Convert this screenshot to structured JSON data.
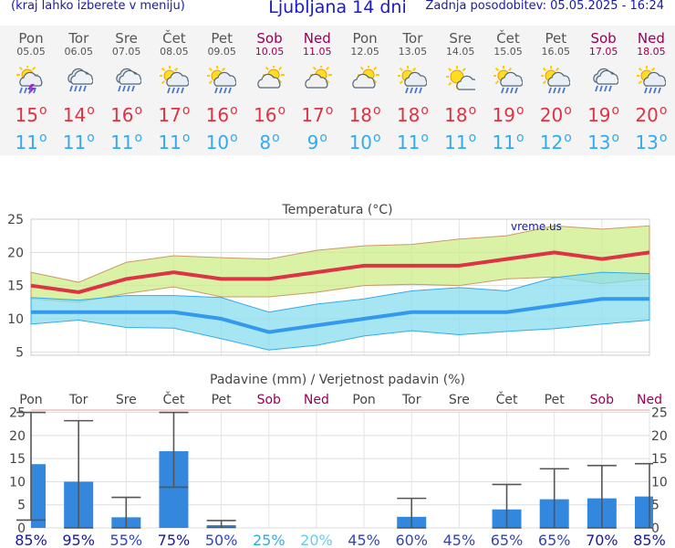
{
  "header": {
    "left_link": "(kraj lahko izberete v meniju)",
    "title": "Ljubljana 14 dni",
    "updated": "Zadnja posodobitev: 05.05.2025 - 16:24"
  },
  "days": [
    {
      "name": "Pon",
      "date": "05.05",
      "weekend": false,
      "icon": "thunderstorm-sun-icon",
      "tmax": "15",
      "tmin": "11"
    },
    {
      "name": "Tor",
      "date": "06.05",
      "weekend": false,
      "icon": "cloud-rain-icon",
      "tmax": "14",
      "tmin": "11"
    },
    {
      "name": "Sre",
      "date": "07.05",
      "weekend": false,
      "icon": "cloud-rain-icon",
      "tmax": "16",
      "tmin": "11"
    },
    {
      "name": "Čet",
      "date": "08.05",
      "weekend": false,
      "icon": "sun-cloud-rain-icon",
      "tmax": "17",
      "tmin": "11"
    },
    {
      "name": "Pet",
      "date": "09.05",
      "weekend": false,
      "icon": "sun-cloud-rain-icon",
      "tmax": "16",
      "tmin": "10"
    },
    {
      "name": "Sob",
      "date": "10.05",
      "weekend": true,
      "icon": "sun-cloud-icon",
      "tmax": "16",
      "tmin": "8"
    },
    {
      "name": "Ned",
      "date": "11.05",
      "weekend": true,
      "icon": "sun-cloud-icon",
      "tmax": "17",
      "tmin": "9"
    },
    {
      "name": "Pon",
      "date": "12.05",
      "weekend": false,
      "icon": "sun-cloud-icon",
      "tmax": "18",
      "tmin": "10"
    },
    {
      "name": "Tor",
      "date": "13.05",
      "weekend": false,
      "icon": "sun-cloud-rain-icon",
      "tmax": "18",
      "tmin": "11"
    },
    {
      "name": "Sre",
      "date": "14.05",
      "weekend": false,
      "icon": "sun-small-cloud-icon",
      "tmax": "18",
      "tmin": "11"
    },
    {
      "name": "Čet",
      "date": "15.05",
      "weekend": false,
      "icon": "sun-cloud-rain-icon",
      "tmax": "19",
      "tmin": "11"
    },
    {
      "name": "Pet",
      "date": "16.05",
      "weekend": false,
      "icon": "sun-cloud-rain-icon",
      "tmax": "20",
      "tmin": "12"
    },
    {
      "name": "Sob",
      "date": "17.05",
      "weekend": true,
      "icon": "cloud-rain-icon",
      "tmax": "19",
      "tmin": "13"
    },
    {
      "name": "Ned",
      "date": "18.05",
      "weekend": true,
      "icon": "sun-cloud-rain-icon",
      "tmax": "20",
      "tmin": "13"
    }
  ],
  "chart_data": [
    {
      "type": "line",
      "title": "Temperatura (°C)",
      "watermark": "vreme.us",
      "ylim": [
        4.5,
        25
      ],
      "yticks": [
        5,
        10,
        15,
        20,
        25
      ],
      "grid": true,
      "x": [
        "05.05",
        "06.05",
        "07.05",
        "08.05",
        "09.05",
        "10.05",
        "11.05",
        "12.05",
        "13.05",
        "14.05",
        "15.05",
        "16.05",
        "17.05",
        "18.05"
      ],
      "series": [
        {
          "role": "max_median",
          "values": [
            15,
            14,
            16,
            17,
            16,
            16,
            17,
            18,
            18,
            18,
            19,
            20,
            19,
            20
          ],
          "color": "#dd3344"
        },
        {
          "role": "max_band_high",
          "values": [
            17,
            15.5,
            18.5,
            19.5,
            19.2,
            19,
            20.3,
            21,
            21.2,
            22,
            22.5,
            24,
            23.5,
            24
          ],
          "color": "#ccee88"
        },
        {
          "role": "max_band_low",
          "values": [
            13,
            12.5,
            13.8,
            14.8,
            13.3,
            13.3,
            14,
            15,
            15.2,
            15,
            16,
            16.3,
            15.3,
            16
          ],
          "color": "#ccee88"
        },
        {
          "role": "min_median",
          "values": [
            11,
            11,
            11,
            11,
            10,
            8,
            9,
            10,
            11,
            11,
            11,
            12,
            13,
            13
          ],
          "color": "#3399ee"
        },
        {
          "role": "min_band_high",
          "values": [
            13.2,
            12.8,
            13.5,
            13.5,
            13.2,
            11,
            12.2,
            13,
            14.2,
            14.7,
            14.2,
            16.2,
            17,
            16.8
          ],
          "color": "#99ddee"
        },
        {
          "role": "min_band_low",
          "values": [
            9.2,
            9.8,
            8.7,
            8.6,
            7,
            5.3,
            6,
            7.4,
            8.2,
            7.6,
            8.1,
            8.5,
            9.2,
            9.8
          ],
          "color": "#99ddee"
        }
      ]
    },
    {
      "type": "bar",
      "title": "Padavine (mm) / Verjetnost padavin (%)",
      "ylim": [
        0,
        25.5
      ],
      "yticks": [
        0,
        5,
        10,
        15,
        20,
        25
      ],
      "categories": [
        "Pon",
        "Tor",
        "Sre",
        "Čet",
        "Pet",
        "Sob",
        "Ned",
        "Pon",
        "Tor",
        "Sre",
        "Čet",
        "Pet",
        "Sob",
        "Ned"
      ],
      "weekend": [
        false,
        false,
        false,
        false,
        false,
        true,
        true,
        false,
        false,
        false,
        false,
        false,
        true,
        true
      ],
      "precip_mm": [
        13.8,
        10,
        2.3,
        16.6,
        0.6,
        0,
        0,
        0,
        2.4,
        0,
        4,
        6.2,
        6.4,
        6.8
      ],
      "precip_high_mm": [
        25,
        23.2,
        6.6,
        25,
        1.6,
        0,
        0,
        0,
        6.4,
        0,
        9.4,
        12.8,
        13.5,
        13.9
      ],
      "precip_low_mm": [
        1.7,
        0,
        0,
        8.8,
        0.1,
        0,
        0,
        0,
        0,
        0,
        0,
        0,
        0,
        0
      ],
      "probability": [
        "85%",
        "95%",
        "55%",
        "75%",
        "50%",
        "25%",
        "20%",
        "45%",
        "60%",
        "45%",
        "65%",
        "65%",
        "70%",
        "85%"
      ],
      "probability_colors": [
        "#1a1a99",
        "#1a1a99",
        "#3344bb",
        "#1a1a99",
        "#3344bb",
        "#33aadd",
        "#66ccee",
        "#3344bb",
        "#3344bb",
        "#3344bb",
        "#3344bb",
        "#3344bb",
        "#1a1a99",
        "#1a1a99"
      ],
      "bar_color": "#3388dd"
    }
  ],
  "colors": {
    "header_text": "#1a1aa8",
    "weekend": "#990055",
    "tmax": "#dd3344",
    "tmin": "#33aaee",
    "panel_bg": "#f4f4f4"
  }
}
